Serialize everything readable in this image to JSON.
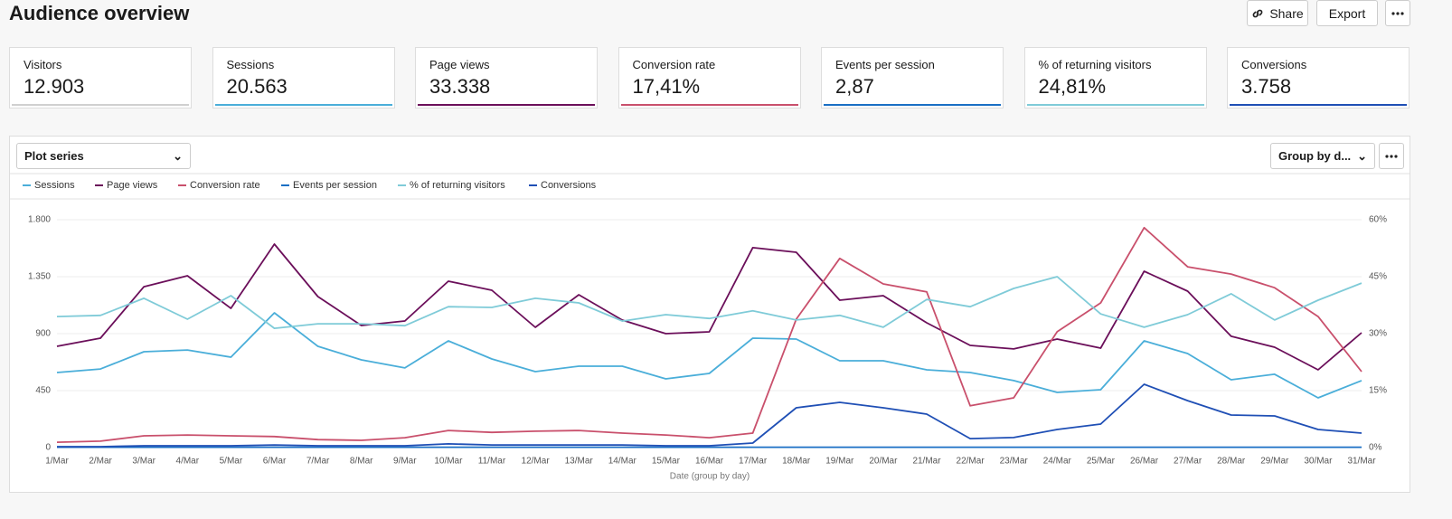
{
  "header": {
    "title": "Audience overview",
    "buttons": [
      "Share",
      "Export"
    ]
  },
  "kpis": [
    {
      "label": "Visitors",
      "value": "12.903",
      "color": "#d0d0d0"
    },
    {
      "label": "Sessions",
      "value": "20.563",
      "color": "#4aaed9"
    },
    {
      "label": "Page views",
      "value": "33.338",
      "color": "#6b0f5a"
    },
    {
      "label": "Conversion rate",
      "value": "17,41%",
      "color": "#c9506c"
    },
    {
      "label": "Events per session",
      "value": "2,87",
      "color": "#1a6fc4"
    },
    {
      "label": "% of returning visitors",
      "value": "24,81%",
      "color": "#7fcbd8"
    },
    {
      "label": "Conversions",
      "value": "3.758",
      "color": "#1f4fb5"
    }
  ],
  "controls": {
    "plot_series": "Plot series",
    "group_by": "Group by d..."
  },
  "chart_data": {
    "type": "line",
    "xlabel": "Date (group by day)",
    "categories": [
      "1/Mar",
      "2/Mar",
      "3/Mar",
      "4/Mar",
      "5/Mar",
      "6/Mar",
      "7/Mar",
      "8/Mar",
      "9/Mar",
      "10/Mar",
      "11/Mar",
      "12/Mar",
      "13/Mar",
      "14/Mar",
      "15/Mar",
      "16/Mar",
      "17/Mar",
      "18/Mar",
      "19/Mar",
      "20/Mar",
      "21/Mar",
      "22/Mar",
      "23/Mar",
      "24/Mar",
      "25/Mar",
      "26/Mar",
      "27/Mar",
      "28/Mar",
      "29/Mar",
      "30/Mar",
      "31/Mar"
    ],
    "ylim": [
      0,
      1800
    ],
    "yticks": [
      0,
      {
        "value": 450,
        "label": "450"
      },
      {
        "value": 900,
        "label": "900"
      },
      {
        "value": 1350,
        "label": "1.350"
      },
      {
        "value": 1800,
        "label": "1.800"
      }
    ],
    "y2lim": [
      0,
      60
    ],
    "y2ticks": [
      {
        "value": 0,
        "label": "0%"
      },
      {
        "value": 15,
        "label": "15%"
      },
      {
        "value": 30,
        "label": "30%"
      },
      {
        "value": 45,
        "label": "45%"
      },
      {
        "value": 60,
        "label": "60%"
      }
    ],
    "grid": true,
    "series": [
      {
        "name": "Sessions",
        "color": "#4aaed9",
        "values": [
          593,
          621,
          757,
          771,
          714,
          1064,
          800,
          693,
          629,
          843,
          700,
          600,
          643,
          643,
          543,
          586,
          864,
          857,
          686,
          686,
          614,
          593,
          529,
          436,
          457,
          843,
          743,
          536,
          579,
          393,
          529
        ]
      },
      {
        "name": "Page views",
        "color": "#6b0f5a",
        "values": [
          800,
          864,
          1271,
          1357,
          1100,
          1607,
          1193,
          964,
          1000,
          1314,
          1243,
          950,
          1207,
          1007,
          900,
          914,
          1579,
          1543,
          1164,
          1200,
          986,
          807,
          779,
          857,
          786,
          1393,
          1236,
          879,
          793,
          614,
          907
        ]
      },
      {
        "name": "Conversion rate",
        "color": "#c9506c",
        "axis": "y2",
        "values": [
          1.4,
          1.7,
          3.1,
          3.3,
          3.1,
          2.9,
          2.1,
          1.9,
          2.6,
          4.5,
          4.0,
          4.3,
          4.5,
          3.8,
          3.3,
          2.6,
          3.8,
          33.8,
          49.8,
          43.1,
          41.0,
          11.0,
          13.1,
          30.5,
          38.1,
          57.9,
          47.6,
          45.7,
          42.1,
          34.5,
          20.0
        ]
      },
      {
        "name": "Events per session",
        "color": "#1a6fc4",
        "values": [
          3,
          3,
          3,
          3,
          3,
          3,
          3,
          3,
          3,
          3,
          3,
          3,
          3,
          3,
          3,
          3,
          3,
          3,
          3,
          3,
          3,
          3,
          3,
          3,
          3,
          3,
          3,
          3,
          3,
          3,
          3
        ]
      },
      {
        "name": "% of returning visitors",
        "color": "#7fcbd8",
        "axis": "y2",
        "values": [
          34.5,
          34.8,
          39.3,
          33.8,
          40.0,
          31.4,
          32.6,
          32.6,
          32.1,
          37.1,
          36.9,
          39.3,
          38.1,
          33.3,
          35.0,
          34.0,
          36.0,
          33.6,
          34.8,
          31.7,
          39.0,
          37.1,
          41.9,
          45.0,
          35.2,
          31.7,
          35.0,
          40.5,
          33.6,
          38.8,
          43.3
        ]
      },
      {
        "name": "Conversions",
        "color": "#1f4fb5",
        "values": [
          7,
          7,
          14,
          14,
          14,
          21,
          14,
          14,
          14,
          29,
          21,
          21,
          21,
          21,
          14,
          14,
          36,
          314,
          357,
          314,
          264,
          71,
          79,
          143,
          186,
          500,
          371,
          257,
          250,
          143,
          114
        ]
      }
    ]
  }
}
